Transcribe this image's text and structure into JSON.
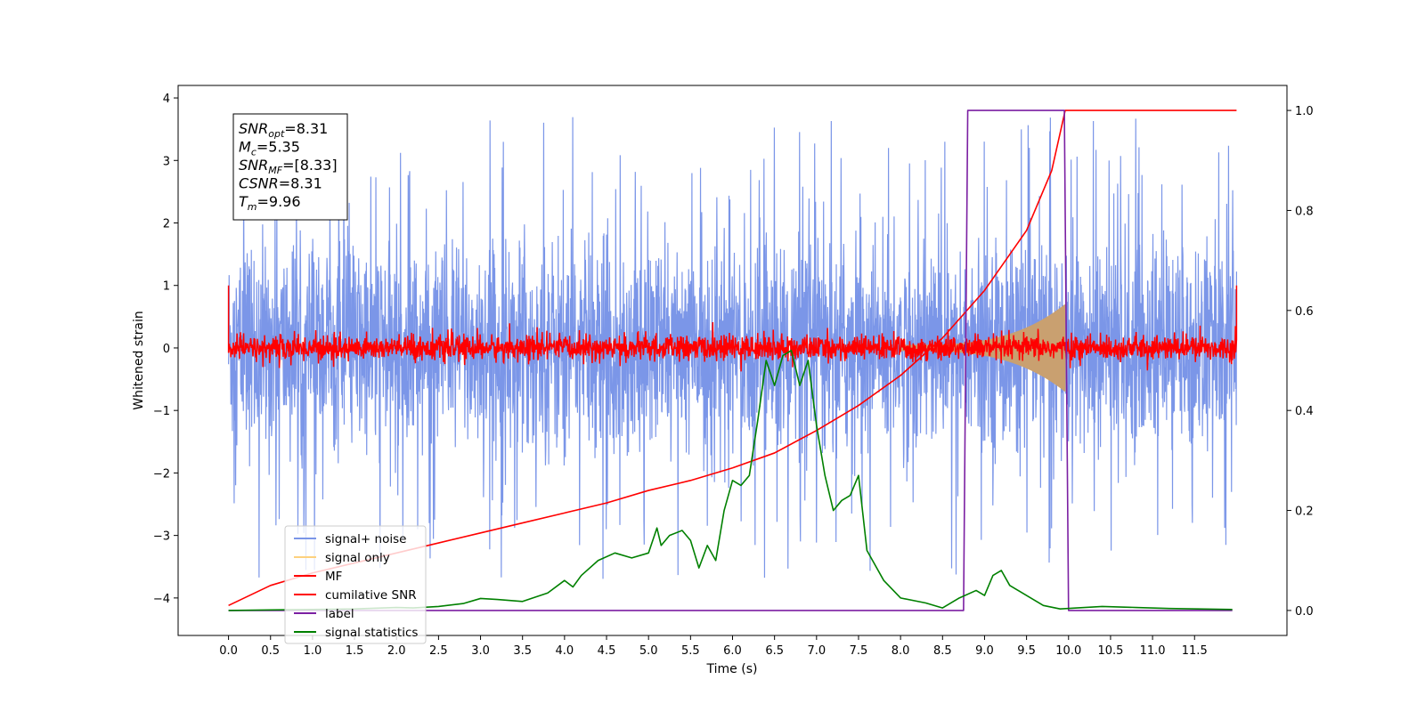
{
  "chart_data": {
    "type": "line",
    "xlabel": "Time (s)",
    "ylabel": "Whitened strain",
    "xlim": [
      -0.6,
      12.6
    ],
    "ylim": [
      -4.6,
      4.2
    ],
    "y2lim": [
      -0.05,
      1.05
    ],
    "x_ticks": [
      0.0,
      0.5,
      1.0,
      1.5,
      2.0,
      2.5,
      3.0,
      3.5,
      4.0,
      4.5,
      5.0,
      5.5,
      6.0,
      6.5,
      7.0,
      7.5,
      8.0,
      8.5,
      9.0,
      9.5,
      10.0,
      10.5,
      11.0,
      11.5
    ],
    "x_tick_labels": [
      "0.0",
      "0.5",
      "1.0",
      "1.5",
      "2.0",
      "2.5",
      "3.0",
      "3.5",
      "4.0",
      "4.5",
      "5.0",
      "5.5",
      "6.0",
      "6.5",
      "7.0",
      "7.5",
      "8.0",
      "8.5",
      "9.0",
      "9.5",
      "10.0",
      "10.5",
      "11.0",
      "11.5"
    ],
    "y_ticks": [
      4,
      3,
      2,
      1,
      0,
      -1,
      -2,
      -3,
      -4
    ],
    "y_tick_labels": [
      "4",
      "3",
      "2",
      "1",
      "0",
      "−1",
      "−2",
      "−3",
      "−4"
    ],
    "y2_ticks": [
      1.0,
      0.8,
      0.6,
      0.4,
      0.2,
      0.0
    ],
    "y2_tick_labels": [
      "1.0",
      "0.8",
      "0.6",
      "0.4",
      "0.2",
      "0.0"
    ],
    "grid": false,
    "legend_position": "bottom-left",
    "annotation": {
      "lines": [
        {
          "base": "SNR",
          "sub": "opt",
          "value": "=8.31"
        },
        {
          "base": "M",
          "sub": "c",
          "value": "=5.35"
        },
        {
          "base": "SNR",
          "sub": "MF",
          "value": "=[8.33]"
        },
        {
          "base": "CSNR",
          "sub": "",
          "value": "=8.31"
        },
        {
          "base": "T",
          "sub": "m",
          "value": "=9.96"
        }
      ]
    },
    "series": [
      {
        "name": "signal+ noise",
        "color": "#7b96e8",
        "axis": "left",
        "kind": "noise",
        "x_range": [
          0.0,
          12.0
        ],
        "amplitude": 1.35
      },
      {
        "name": "signal only",
        "color": "#fdd17e",
        "axis": "left",
        "kind": "chirp",
        "x_range": [
          8.0,
          9.96
        ],
        "peak_amplitude": 0.65
      },
      {
        "name": "MF",
        "color": "#ff0000",
        "axis": "left",
        "kind": "noise",
        "x_range": [
          0.0,
          12.0
        ],
        "amplitude": 0.13
      },
      {
        "name": "cumilative SNR",
        "color": "#ff0000",
        "axis": "right",
        "x": [
          0.0,
          0.5,
          1.0,
          1.5,
          2.0,
          2.5,
          3.0,
          3.5,
          4.0,
          4.5,
          5.0,
          5.5,
          6.0,
          6.5,
          7.0,
          7.5,
          8.0,
          8.5,
          9.0,
          9.5,
          9.8,
          9.96,
          10.0,
          12.0
        ],
        "y": [
          0.01,
          0.05,
          0.075,
          0.095,
          0.115,
          0.135,
          0.155,
          0.175,
          0.195,
          0.215,
          0.24,
          0.26,
          0.285,
          0.315,
          0.36,
          0.41,
          0.47,
          0.545,
          0.64,
          0.76,
          0.88,
          1.0,
          1.0,
          1.0
        ]
      },
      {
        "name": "label",
        "color": "#7b1fa2",
        "axis": "right",
        "x": [
          0.0,
          8.75,
          8.8,
          9.95,
          10.0,
          11.95
        ],
        "y": [
          0.0,
          0.0,
          1.0,
          1.0,
          0.0,
          0.0
        ]
      },
      {
        "name": "signal statistics",
        "color": "#008000",
        "axis": "right",
        "x": [
          0.0,
          0.5,
          1.0,
          1.5,
          2.0,
          2.2,
          2.5,
          2.8,
          3.0,
          3.2,
          3.5,
          3.8,
          4.0,
          4.1,
          4.2,
          4.4,
          4.6,
          4.8,
          5.0,
          5.1,
          5.15,
          5.25,
          5.4,
          5.5,
          5.6,
          5.7,
          5.8,
          5.9,
          6.0,
          6.1,
          6.2,
          6.3,
          6.4,
          6.5,
          6.6,
          6.7,
          6.8,
          6.9,
          7.0,
          7.1,
          7.2,
          7.3,
          7.4,
          7.5,
          7.6,
          7.8,
          8.0,
          8.3,
          8.5,
          8.7,
          8.9,
          9.0,
          9.1,
          9.2,
          9.3,
          9.5,
          9.7,
          9.9,
          10.1,
          10.4,
          10.8,
          11.2,
          11.95
        ],
        "y": [
          0.0,
          0.001,
          0.002,
          0.003,
          0.006,
          0.005,
          0.008,
          0.014,
          0.024,
          0.022,
          0.018,
          0.035,
          0.06,
          0.047,
          0.07,
          0.1,
          0.115,
          0.105,
          0.115,
          0.165,
          0.13,
          0.15,
          0.16,
          0.14,
          0.085,
          0.13,
          0.1,
          0.2,
          0.26,
          0.25,
          0.27,
          0.38,
          0.5,
          0.45,
          0.51,
          0.52,
          0.45,
          0.5,
          0.37,
          0.27,
          0.2,
          0.22,
          0.23,
          0.27,
          0.12,
          0.06,
          0.025,
          0.015,
          0.005,
          0.025,
          0.04,
          0.03,
          0.07,
          0.08,
          0.05,
          0.03,
          0.01,
          0.003,
          0.005,
          0.008,
          0.006,
          0.004,
          0.002
        ]
      }
    ]
  }
}
